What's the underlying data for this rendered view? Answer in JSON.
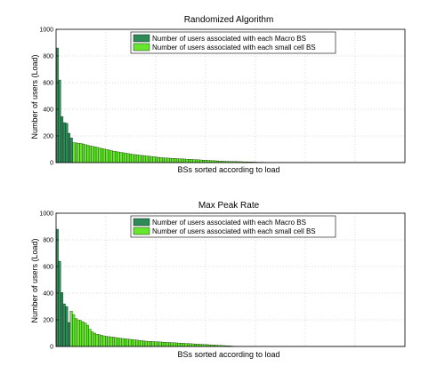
{
  "chart_data": [
    {
      "type": "bar",
      "title": "Randomized Algorithm",
      "xlabel": "BSs sorted according to load",
      "ylabel": "Number of users (Load)",
      "ylim": [
        0,
        1000
      ],
      "yticks": [
        0,
        200,
        400,
        600,
        800,
        1000
      ],
      "grid": true,
      "legend_position": "top-center",
      "series": [
        {
          "name": "Number of users associated with each Macro BS",
          "color": "#2e8b57",
          "values": [
            860,
            620,
            345,
            300,
            295,
            220,
            185
          ]
        },
        {
          "name": "Number of users associated with each small cell BS",
          "color": "#66e62e",
          "values": [
            150,
            148,
            146,
            144,
            140,
            135,
            130,
            126,
            122,
            118,
            114,
            110,
            106,
            102,
            98,
            94,
            90,
            86,
            83,
            80,
            77,
            74,
            71,
            68,
            65,
            62,
            60,
            58,
            56,
            54,
            52,
            50,
            48,
            46,
            44,
            42,
            40,
            38,
            36,
            35,
            34,
            33,
            32,
            31,
            30,
            29,
            28,
            27,
            26,
            25,
            24,
            23,
            22,
            21,
            20,
            19,
            18,
            17,
            16,
            15,
            14,
            13,
            12,
            11,
            10,
            10,
            9,
            9,
            8,
            8,
            7,
            7,
            6,
            6,
            5,
            5,
            4,
            4,
            3,
            3,
            3,
            2,
            2,
            2,
            1,
            1,
            1,
            1,
            1,
            1,
            1,
            1,
            1,
            1,
            1,
            1,
            1,
            1,
            1,
            1,
            1,
            1,
            1,
            1,
            1,
            1,
            1,
            1,
            1,
            1,
            1,
            1,
            1,
            1,
            1,
            1,
            1,
            1,
            1,
            1,
            1,
            1,
            1,
            1,
            1,
            1,
            1,
            1,
            1,
            1,
            1,
            1,
            1,
            1,
            1,
            1,
            1,
            1,
            1,
            1,
            1
          ]
        }
      ]
    },
    {
      "type": "bar",
      "title": "Max Peak Rate",
      "xlabel": "BSs sorted according to load",
      "ylabel": "Number of users (Load)",
      "ylim": [
        0,
        1000
      ],
      "yticks": [
        0,
        200,
        400,
        600,
        800,
        1000
      ],
      "grid": true,
      "legend_position": "top-center",
      "series": [
        {
          "name": "Number of users associated with each Macro BS",
          "color": "#2e8b57",
          "values": [
            880,
            640,
            405,
            320,
            300,
            180
          ]
        },
        {
          "name": "Number of users associated with each small cell BS",
          "color": "#66e62e",
          "values": [
            265,
            240,
            210,
            200,
            195,
            185,
            175,
            160,
            130,
            110,
            100,
            92,
            88,
            84,
            80,
            76,
            74,
            72,
            70,
            67,
            64,
            62,
            60,
            58,
            56,
            54,
            52,
            50,
            48,
            46,
            44,
            42,
            40,
            39,
            38,
            37,
            36,
            35,
            34,
            33,
            32,
            31,
            30,
            29,
            28,
            27,
            26,
            25,
            24,
            23,
            22,
            21,
            20,
            19,
            18,
            17,
            16,
            15,
            14,
            13,
            12,
            11,
            10,
            9,
            8,
            7,
            6,
            5,
            4,
            3,
            2,
            2,
            1,
            1,
            1,
            1,
            1,
            1,
            1,
            1,
            1,
            1,
            1,
            1,
            1,
            1,
            1,
            1,
            1,
            1,
            1,
            1,
            1,
            1,
            1,
            1,
            1,
            1,
            1,
            1,
            1,
            1,
            1,
            1,
            1,
            1,
            1,
            1,
            1,
            1,
            1,
            1,
            1,
            1,
            1,
            1,
            1,
            1,
            1,
            1,
            1,
            1,
            1,
            1,
            1,
            1,
            1,
            1,
            1,
            1,
            1,
            1,
            1,
            1,
            1,
            1,
            1,
            1,
            1,
            1,
            1,
            1,
            1
          ]
        }
      ]
    }
  ]
}
